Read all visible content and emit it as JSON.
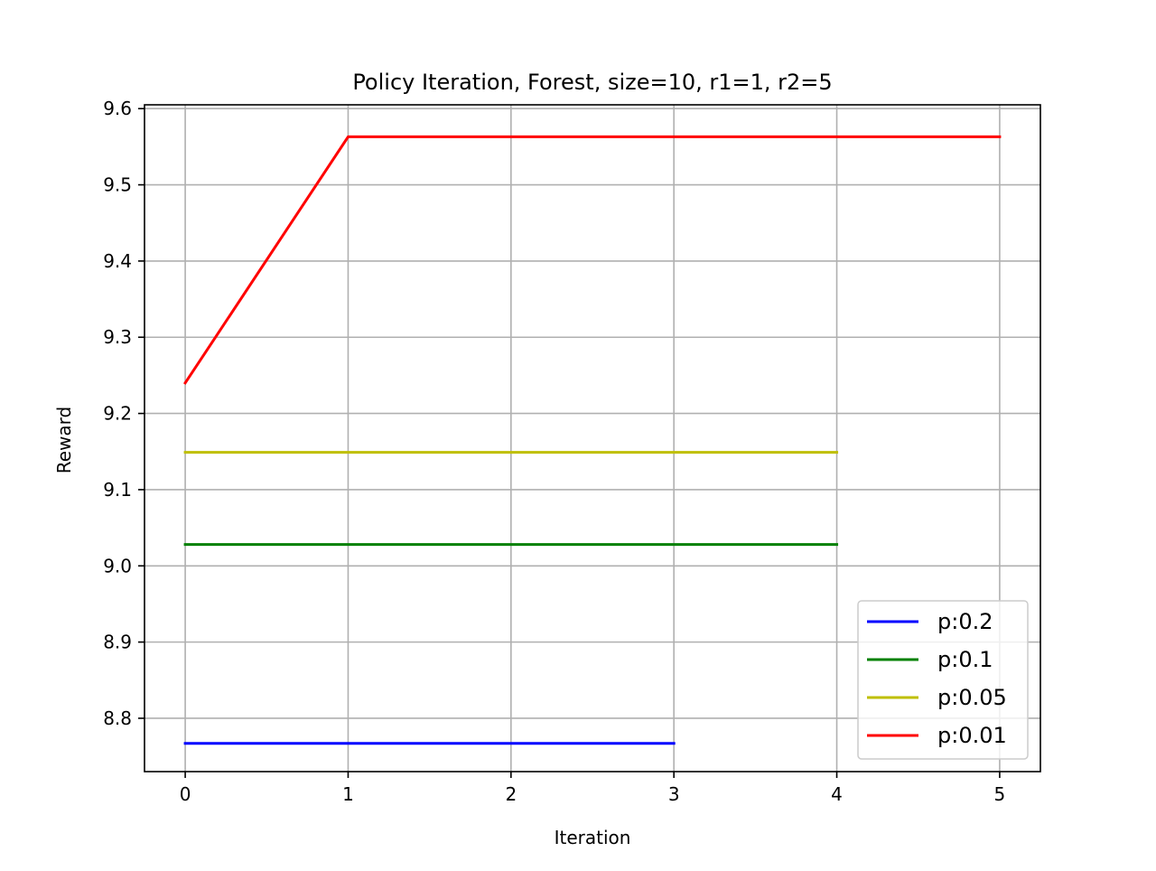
{
  "chart_data": {
    "type": "line",
    "title": "Policy Iteration, Forest, size=10, r1=1, r2=5",
    "xlabel": "Iteration",
    "ylabel": "Reward",
    "xlim": [
      -0.25,
      5.25
    ],
    "ylim": [
      8.73,
      9.605
    ],
    "xticks": [
      0,
      1,
      2,
      3,
      4,
      5
    ],
    "xtick_labels": [
      "0",
      "1",
      "2",
      "3",
      "4",
      "5"
    ],
    "yticks": [
      8.8,
      8.9,
      9.0,
      9.1,
      9.2,
      9.3,
      9.4,
      9.5,
      9.6
    ],
    "ytick_labels": [
      "8.8",
      "8.9",
      "9.0",
      "9.1",
      "9.2",
      "9.3",
      "9.4",
      "9.5",
      "9.6"
    ],
    "grid": true,
    "legend_position": "lower-right",
    "series": [
      {
        "name": "p:0.2",
        "color": "#0000ff",
        "x": [
          0,
          1,
          2,
          3
        ],
        "y": [
          8.767,
          8.767,
          8.767,
          8.767
        ]
      },
      {
        "name": "p:0.1",
        "color": "#008000",
        "x": [
          0,
          1,
          2,
          3,
          4
        ],
        "y": [
          9.028,
          9.028,
          9.028,
          9.028,
          9.028
        ]
      },
      {
        "name": "p:0.05",
        "color": "#bfbf00",
        "x": [
          0,
          1,
          2,
          3,
          4
        ],
        "y": [
          9.149,
          9.149,
          9.149,
          9.149,
          9.149
        ]
      },
      {
        "name": "p:0.01",
        "color": "#ff0000",
        "x": [
          0,
          1,
          2,
          3,
          4,
          5
        ],
        "y": [
          9.24,
          9.563,
          9.563,
          9.563,
          9.563,
          9.563
        ]
      }
    ]
  }
}
